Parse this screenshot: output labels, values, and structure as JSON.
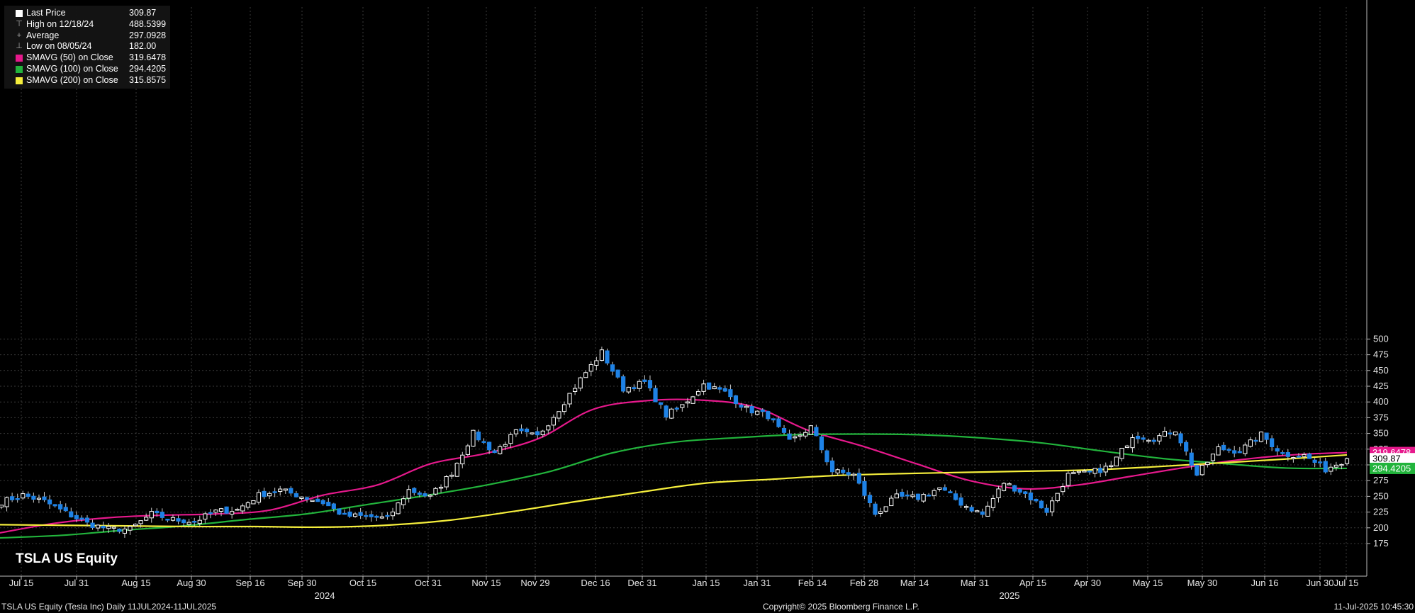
{
  "ticker_title": "TSLA US Equity",
  "legend": {
    "rows": [
      {
        "label": "Last Price",
        "value": "309.87",
        "swatch": "#ffffff",
        "glyph": ""
      },
      {
        "label": "High on 12/18/24",
        "value": "488.5399",
        "swatch": "",
        "glyph": "⊤"
      },
      {
        "label": "Average",
        "value": "297.0928",
        "swatch": "",
        "glyph": "+"
      },
      {
        "label": "Low on 08/05/24",
        "value": "182.00",
        "swatch": "",
        "glyph": "⊥"
      },
      {
        "label": "SMAVG (50)  on Close",
        "value": "319.6478",
        "swatch": "#e6198c",
        "glyph": ""
      },
      {
        "label": "SMAVG (100)  on Close",
        "value": "294.4205",
        "swatch": "#22b43c",
        "glyph": ""
      },
      {
        "label": "SMAVG (200)  on Close",
        "value": "315.8575",
        "swatch": "#f5ee3c",
        "glyph": ""
      }
    ]
  },
  "footer": {
    "left": "TSLA US Equity (Tesla Inc)  Daily 11JUL2024-11JUL2025",
    "center": "Copyright© 2025 Bloomberg Finance L.P.",
    "right": "11-Jul-2025 10:45:30"
  },
  "chart_data": {
    "type": "candlestick",
    "title": "TSLA US Equity",
    "ylim": [
      160,
      510
    ],
    "y_ticks": [
      175,
      200,
      225,
      250,
      275,
      300,
      325,
      350,
      375,
      400,
      425,
      450,
      475,
      500
    ],
    "grid": true,
    "x_tick_labels": [
      "Jul 15",
      "Jul 31",
      "Aug 15",
      "Aug 30",
      "Sep 16",
      "Sep 30",
      "Oct 15",
      "Oct 31",
      "Nov 15",
      "Nov 29",
      "Dec 16",
      "Dec 31",
      "Jan 15",
      "Jan 31",
      "Feb 14",
      "Feb 28",
      "Mar 14",
      "Mar 31",
      "Apr 15",
      "Apr 30",
      "May 15",
      "May 30",
      "Jun 16",
      "Jun 30",
      "Jul 15"
    ],
    "year_labels": [
      "2024",
      "2025"
    ],
    "price_tags": [
      {
        "label": "319.6478",
        "value": 319.6478,
        "color": "#e6198c",
        "text_color": "#ffffff"
      },
      {
        "label": "309.87",
        "value": 309.87,
        "color": "#ffffff",
        "text_color": "#000000"
      },
      {
        "label": "294.4205",
        "value": 294.4205,
        "color": "#22b43c",
        "text_color": "#ffffff"
      }
    ],
    "candle_colors": {
      "up": "#ffffff",
      "down": "#1e82e6",
      "wick": "#cccccc"
    },
    "close_anchors": [
      [
        "Jul 11",
        241
      ],
      [
        "Jul 15",
        252
      ],
      [
        "Jul 22",
        242
      ],
      [
        "Jul 29",
        224
      ],
      [
        "Aug 02",
        207
      ],
      [
        "Aug 05",
        198
      ],
      [
        "Aug 12",
        198
      ],
      [
        "Aug 19",
        222
      ],
      [
        "Aug 26",
        213
      ],
      [
        "Sep 03",
        210
      ],
      [
        "Sep 10",
        226
      ],
      [
        "Sep 16",
        229
      ],
      [
        "Sep 23",
        252
      ],
      [
        "Sep 30",
        260
      ],
      [
        "Oct 04",
        250
      ],
      [
        "Oct 10",
        240
      ],
      [
        "Oct 14",
        219
      ],
      [
        "Oct 21",
        218
      ],
      [
        "Oct 23",
        215
      ],
      [
        "Oct 24",
        260
      ],
      [
        "Oct 31",
        249
      ],
      [
        "Nov 06",
        288
      ],
      [
        "Nov 11",
        350
      ],
      [
        "Nov 15",
        320
      ],
      [
        "Nov 22",
        352
      ],
      [
        "Nov 29",
        345
      ],
      [
        "Dec 06",
        389
      ],
      [
        "Dec 13",
        436
      ],
      [
        "Dec 17",
        479
      ],
      [
        "Dec 20",
        421
      ],
      [
        "Dec 27",
        431
      ],
      [
        "Jan 02",
        379
      ],
      [
        "Jan 08",
        394
      ],
      [
        "Jan 15",
        428
      ],
      [
        "Jan 22",
        415
      ],
      [
        "Jan 29",
        389
      ],
      [
        "Feb 05",
        378
      ],
      [
        "Feb 12",
        336
      ],
      [
        "Feb 19",
        360
      ],
      [
        "Feb 26",
        290
      ],
      [
        "Mar 03",
        284
      ],
      [
        "Mar 10",
        222
      ],
      [
        "Mar 14",
        249
      ],
      [
        "Mar 21",
        248
      ],
      [
        "Mar 28",
        263
      ],
      [
        "Apr 04",
        239
      ],
      [
        "Apr 08",
        221
      ],
      [
        "Apr 09",
        272
      ],
      [
        "Apr 15",
        254
      ],
      [
        "Apr 21",
        227
      ],
      [
        "Apr 25",
        284
      ],
      [
        "May 02",
        287
      ],
      [
        "May 09",
        298
      ],
      [
        "May 14",
        347
      ],
      [
        "May 21",
        342
      ],
      [
        "May 28",
        356
      ],
      [
        "Jun 05",
        284
      ],
      [
        "Jun 11",
        326
      ],
      [
        "Jun 18",
        322
      ],
      [
        "Jun 23",
        348
      ],
      [
        "Jun 30",
        317
      ],
      [
        "Jul 03",
        315
      ],
      [
        "Jul 07",
        293
      ],
      [
        "Jul 11",
        309.87
      ]
    ],
    "series": [
      {
        "name": "SMAVG (50)  on Close",
        "color": "#e6198c",
        "values": [
          192,
          207,
          216,
          220,
          222,
          228,
          252,
          268,
          302,
          318,
          342,
          388,
          402,
          403,
          392,
          355,
          330,
          302,
          275,
          262,
          268,
          282,
          296,
          308,
          316,
          319.6478
        ]
      },
      {
        "name": "SMAVG (100)  on Close",
        "color": "#22b43c",
        "values": [
          184,
          188,
          196,
          203,
          213,
          222,
          237,
          252,
          269,
          290,
          319,
          336,
          343,
          348,
          349,
          348,
          343,
          335,
          322,
          310,
          302,
          295,
          294.4205
        ]
      },
      {
        "name": "SMAVG (200)  on Close",
        "color": "#f5ee3c",
        "values": [
          205,
          204,
          203,
          202,
          202,
          201,
          204,
          212,
          226,
          242,
          257,
          271,
          277,
          283,
          286,
          288,
          290,
          292,
          297,
          303,
          309,
          315.8575
        ]
      }
    ]
  }
}
